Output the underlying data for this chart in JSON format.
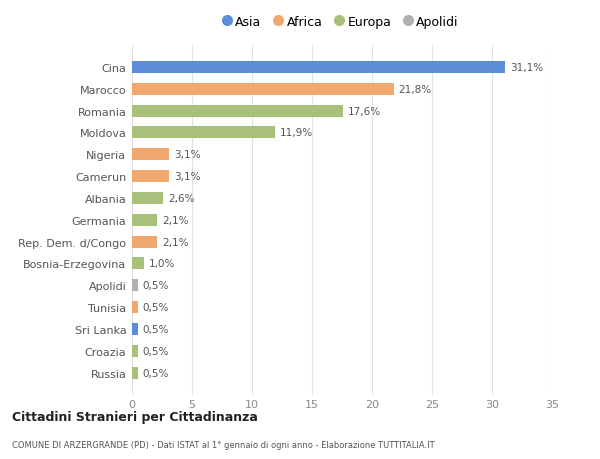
{
  "categories": [
    "Russia",
    "Croazia",
    "Sri Lanka",
    "Tunisia",
    "Apolidi",
    "Bosnia-Erzegovina",
    "Rep. Dem. d/Congo",
    "Germania",
    "Albania",
    "Camerun",
    "Nigeria",
    "Moldova",
    "Romania",
    "Marocco",
    "Cina"
  ],
  "values": [
    0.5,
    0.5,
    0.5,
    0.5,
    0.5,
    1.0,
    2.1,
    2.1,
    2.6,
    3.1,
    3.1,
    11.9,
    17.6,
    21.8,
    31.1
  ],
  "labels": [
    "0,5%",
    "0,5%",
    "0,5%",
    "0,5%",
    "0,5%",
    "1,0%",
    "2,1%",
    "2,1%",
    "2,6%",
    "3,1%",
    "3,1%",
    "11,9%",
    "17,6%",
    "21,8%",
    "31,1%"
  ],
  "colors": [
    "#a8c07a",
    "#a8c07a",
    "#5b8dd9",
    "#f0a86e",
    "#b0b0b0",
    "#a8c07a",
    "#f0a86e",
    "#a8c07a",
    "#a8c07a",
    "#f0a86e",
    "#f0a86e",
    "#a8c07a",
    "#a8c07a",
    "#f0a86e",
    "#5b8dd9"
  ],
  "legend": [
    {
      "label": "Asia",
      "color": "#5b8dd9"
    },
    {
      "label": "Africa",
      "color": "#f0a86e"
    },
    {
      "label": "Europa",
      "color": "#a8c07a"
    },
    {
      "label": "Apolidi",
      "color": "#b0b0b0"
    }
  ],
  "title": "Cittadini Stranieri per Cittadinanza",
  "subtitle": "COMUNE DI ARZERGRANDE (PD) - Dati ISTAT al 1° gennaio di ogni anno - Elaborazione TUTTITALIA.IT",
  "xlim": [
    0,
    35
  ],
  "xticks": [
    0,
    5,
    10,
    15,
    20,
    25,
    30,
    35
  ],
  "bg_color": "#ffffff",
  "grid_color": "#e0e0e0"
}
